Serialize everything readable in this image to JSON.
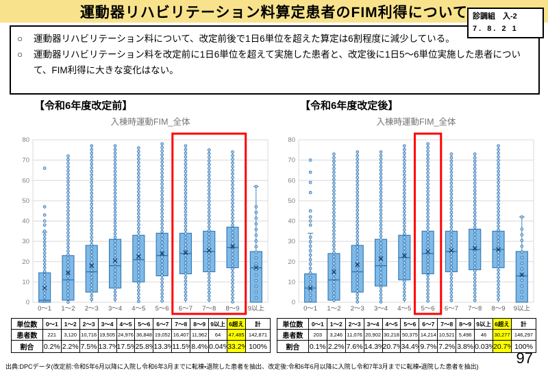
{
  "header": {
    "title": "運動器リハビリテーション料算定患者のFIM利得について",
    "doc_ref_line1": "診調組　入-2",
    "doc_ref_line2": "7. 8. 2 1"
  },
  "points": [
    {
      "marker": "○",
      "text": "運動器リハビリテーション料について、改定前後で1日6単位を超えた算定は6割程度に減少している。"
    },
    {
      "marker": "○",
      "text": "運動器リハビリテーション料を改定前に1日6単位を超えて実施した患者と、改定後に1日5～6単位実施した患者について、FIM利得に大きな変化はない。"
    }
  ],
  "colors": {
    "banner": "#F8E38C",
    "box_fill": "#7FB9E6",
    "box_stroke": "#2E75B6",
    "dot_fill": "#BDD7EE",
    "dot_stroke": "#2E75B6",
    "median": "#2E75B6",
    "mean_marker": "#17375E",
    "grid": "#D9D9D9",
    "axis": "#BFBFBF",
    "tick_label": "#808080",
    "cat_label": "#595959",
    "chart_title": "#757575",
    "highlight_red": "#FF0000",
    "table_highlight": "#FFFF00"
  },
  "chart_data": [
    {
      "type": "box",
      "section_label": "【令和6年度改定前】",
      "title": "入棟時運動FIM_全体",
      "ylim": [
        0,
        80
      ],
      "ytick_step": 10,
      "grid": true,
      "categories": [
        "0～1",
        "1～2",
        "2～3",
        "3～4",
        "4～5",
        "5～6",
        "6～7",
        "7～8",
        "8～9",
        "9以上"
      ],
      "highlight_categories": [
        "6～7",
        "7～8",
        "8～9"
      ],
      "boxes": [
        {
          "whisker_low": 0,
          "q1": 0,
          "median": 1,
          "mean": 7,
          "q3": 14.5,
          "whisker_high": 34.5,
          "caps": true,
          "dots_min": 0,
          "dots_max": 35,
          "dot_step": 1.8,
          "outlier_dots": [
            38,
            40,
            43,
            47,
            66
          ]
        },
        {
          "whisker_low": 0,
          "q1": 1,
          "median": 11,
          "mean": 14.5,
          "q3": 23,
          "whisker_high": 72,
          "dots_min": 0,
          "dots_max": 72,
          "dot_step": 1.8
        },
        {
          "whisker_low": 0,
          "q1": 5,
          "median": 15,
          "mean": 18,
          "q3": 28,
          "whisker_high": 77,
          "dots_min": 0,
          "dots_max": 77,
          "dot_step": 1.8
        },
        {
          "whisker_low": 0,
          "q1": 7,
          "median": 18,
          "mean": 20.5,
          "q3": 31,
          "whisker_high": 77,
          "dots_min": 0,
          "dots_max": 77,
          "dot_step": 1.8
        },
        {
          "whisker_low": 0,
          "q1": 10,
          "median": 21,
          "mean": 22.5,
          "q3": 33,
          "whisker_high": 76,
          "dots_min": 0,
          "dots_max": 76,
          "dot_step": 1.8
        },
        {
          "whisker_low": 0,
          "q1": 13,
          "median": 23,
          "mean": 24,
          "q3": 34,
          "whisker_high": 78,
          "dots_min": 0,
          "dots_max": 78,
          "dot_step": 1.8
        },
        {
          "whisker_low": 0,
          "q1": 14,
          "median": 24,
          "mean": 24.5,
          "q3": 34,
          "whisker_high": 77,
          "dots_min": 0,
          "dots_max": 77,
          "dot_step": 1.8
        },
        {
          "whisker_low": 0,
          "q1": 15,
          "median": 25,
          "mean": 25.5,
          "q3": 35,
          "whisker_high": 75,
          "dots_min": 0,
          "dots_max": 75,
          "dot_step": 1.8
        },
        {
          "whisker_low": 0,
          "q1": 17,
          "median": 27,
          "mean": 27.5,
          "q3": 37,
          "whisker_high": 74,
          "dots_min": 0,
          "dots_max": 74,
          "dot_step": 1.8
        },
        {
          "whisker_low": 0,
          "q1": 0,
          "median": 17,
          "mean": 17,
          "q3": 25,
          "whisker_high": 57,
          "caps": true,
          "dots_min": 0,
          "dots_max": 47,
          "dot_step": 2.8,
          "outlier_dots": [
            57
          ]
        }
      ]
    },
    {
      "type": "box",
      "section_label": "【令和6年度改定後】",
      "title": "入棟時運動FIM_全体",
      "ylim": [
        0,
        80
      ],
      "ytick_step": 10,
      "grid": true,
      "categories": [
        "0～1",
        "1～2",
        "2～3",
        "3～4",
        "4～5",
        "5～6",
        "6～7",
        "7～8",
        "8～9",
        "9以上"
      ],
      "highlight_categories": [
        "5～6"
      ],
      "boxes": [
        {
          "whisker_low": 0,
          "q1": 0,
          "median": 7,
          "mean": 7,
          "q3": 14,
          "whisker_high": 34,
          "caps": true,
          "dots_min": 0,
          "dots_max": 32,
          "dot_step": 2.2,
          "outlier_dots": [
            38,
            40,
            42,
            45,
            54,
            59,
            64,
            70
          ]
        },
        {
          "whisker_low": 0,
          "q1": 1,
          "median": 11,
          "mean": 15,
          "q3": 24,
          "whisker_high": 73,
          "dots_min": 0,
          "dots_max": 73,
          "dot_step": 1.8
        },
        {
          "whisker_low": 0,
          "q1": 5,
          "median": 15,
          "mean": 18.5,
          "q3": 28,
          "whisker_high": 74,
          "dots_min": 0,
          "dots_max": 74,
          "dot_step": 1.8
        },
        {
          "whisker_low": 0,
          "q1": 8,
          "median": 18,
          "mean": 21.5,
          "q3": 31,
          "whisker_high": 74,
          "dots_min": 0,
          "dots_max": 74,
          "dot_step": 1.8
        },
        {
          "whisker_low": 0,
          "q1": 11,
          "median": 22,
          "mean": 23,
          "q3": 33,
          "whisker_high": 77,
          "dots_min": 0,
          "dots_max": 77,
          "dot_step": 1.8
        },
        {
          "whisker_low": 0,
          "q1": 14,
          "median": 24,
          "mean": 25,
          "q3": 35,
          "whisker_high": 78,
          "dots_min": 0,
          "dots_max": 78,
          "dot_step": 1.8
        },
        {
          "whisker_low": 0,
          "q1": 15,
          "median": 25,
          "mean": 25.5,
          "q3": 35,
          "whisker_high": 73,
          "dots_min": 0,
          "dots_max": 73,
          "dot_step": 1.8
        },
        {
          "whisker_low": 0,
          "q1": 16,
          "median": 26,
          "mean": 26.5,
          "q3": 36,
          "whisker_high": 73,
          "dots_min": 0,
          "dots_max": 73,
          "dot_step": 1.8
        },
        {
          "whisker_low": 0,
          "q1": 17,
          "median": 26,
          "mean": 26,
          "q3": 35,
          "whisker_high": 77,
          "dots_min": 0,
          "dots_max": 77,
          "dot_step": 1.8
        },
        {
          "whisker_low": 0,
          "q1": 0,
          "median": 13,
          "mean": 13.5,
          "q3": 25,
          "whisker_high": 42,
          "caps": true,
          "dots_min": 0,
          "dots_max": 36,
          "dot_step": 2.8,
          "outlier_dots": [
            42
          ]
        }
      ]
    }
  ],
  "tables": [
    {
      "highlight_column_index": 10,
      "rows": [
        {
          "kind": "header",
          "label": "単位数",
          "cells": [
            "0～1",
            "1～2",
            "2～3",
            "3～4",
            "4～5",
            "5～6",
            "6～7",
            "7～8",
            "8～9",
            "9以上",
            "6超え",
            "計"
          ]
        },
        {
          "kind": "patients",
          "label": "患者数",
          "cells": [
            "221",
            "3,120",
            "10,716",
            "19,505",
            "24,976",
            "36,848",
            "19,052",
            "16,407",
            "11,962",
            "64",
            "47,485",
            "142,871"
          ]
        },
        {
          "kind": "ratios",
          "label": "割合",
          "cells": [
            "0.2%",
            "2.2%",
            "7.5%",
            "13.7%",
            "17.5%",
            "25.8%",
            "13.3%",
            "11.5%",
            "8.4%",
            "0.04%",
            "33.2%",
            "100%"
          ]
        }
      ]
    },
    {
      "highlight_column_index": 10,
      "rows": [
        {
          "kind": "header",
          "label": "単位数",
          "cells": [
            "0～1",
            "1～2",
            "2～3",
            "3～4",
            "4～5",
            "5～6",
            "6～7",
            "7～8",
            "8～9",
            "9以上",
            "6超え",
            "計"
          ]
        },
        {
          "kind": "patients",
          "label": "患者数",
          "cells": [
            "203",
            "3,246",
            "11,076",
            "20,902",
            "30,218",
            "50,375",
            "14,214",
            "10,521",
            "5,496",
            "46",
            "30,277",
            "146,297"
          ]
        },
        {
          "kind": "ratios",
          "label": "割合",
          "cells": [
            "0.1%",
            "2.2%",
            "7.6%",
            "14.3%",
            "20.7%",
            "34.4%",
            "9.7%",
            "7.2%",
            "3.8%",
            "0.03%",
            "20.7%",
            "100%"
          ]
        }
      ]
    }
  ],
  "footer": {
    "source": "出典:DPCデータ(改定前:令和5年6月以降に入院し令和6年3月までに転棟・退院した患者を抽出、改定後:令和6年6月以降に入院し令和7年3月までに転棟・退院した患者を抽出)",
    "page_number": "97"
  }
}
